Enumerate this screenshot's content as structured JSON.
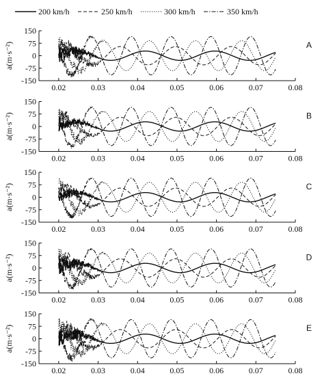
{
  "legend": [
    {
      "label": "200 km/h",
      "dash": "",
      "width": 1.4
    },
    {
      "label": "250 km/h",
      "dash": "5,3",
      "width": 1.0
    },
    {
      "label": "300 km/h",
      "dash": "1.2,2",
      "width": 1.0
    },
    {
      "label": "350 km/h",
      "dash": "6,2,1.5,2",
      "width": 1.0
    }
  ],
  "chart_data": [
    {
      "type": "line",
      "panel_label": "A",
      "ylabel": "a(m·s⁻²)",
      "xlim": [
        0.015,
        0.08
      ],
      "ylim": [
        -150,
        150
      ],
      "xticks": [
        "0.02",
        "0.03",
        "0.04",
        "0.05",
        "0.06",
        "0.07",
        "0.08"
      ],
      "yticks": [
        "150",
        "75",
        "0",
        "-75",
        "-150"
      ],
      "series": [
        {
          "name": "200 km/h",
          "x_range": [
            0.02,
            0.075
          ],
          "amplitude": 28,
          "period": 0.0176,
          "noise_until": 0.031,
          "noise_amplitude": 45
        },
        {
          "name": "250 km/h",
          "x_range": [
            0.02,
            0.075
          ],
          "amplitude": 55,
          "period": 0.0141,
          "noise_until": 0.032,
          "noise_amplitude": 60
        },
        {
          "name": "300 km/h",
          "x_range": [
            0.02,
            0.075
          ],
          "amplitude": 90,
          "period": 0.0117,
          "noise_until": 0.033,
          "noise_amplitude": 40
        },
        {
          "name": "350 km/h",
          "x_range": [
            0.02,
            0.075
          ],
          "amplitude": 115,
          "period": 0.0101,
          "noise_until": 0.03,
          "noise_amplitude": 30
        }
      ]
    },
    {
      "type": "line",
      "panel_label": "B",
      "ylabel": "a(m·s⁻²)",
      "xlim": [
        0.015,
        0.08
      ],
      "ylim": [
        -150,
        150
      ],
      "xticks": [
        "0.02",
        "0.03",
        "0.04",
        "0.05",
        "0.06",
        "0.07",
        "0.08"
      ],
      "yticks": [
        "150",
        "75",
        "0",
        "-75",
        "-150"
      ],
      "series": [
        {
          "name": "200 km/h",
          "x_range": [
            0.02,
            0.075
          ],
          "amplitude": 28,
          "period": 0.0176,
          "noise_until": 0.031,
          "noise_amplitude": 30
        },
        {
          "name": "250 km/h",
          "x_range": [
            0.02,
            0.075
          ],
          "amplitude": 55,
          "period": 0.0141,
          "noise_until": 0.032,
          "noise_amplitude": 45
        },
        {
          "name": "300 km/h",
          "x_range": [
            0.02,
            0.075
          ],
          "amplitude": 90,
          "period": 0.0117,
          "noise_until": 0.033,
          "noise_amplitude": 35
        },
        {
          "name": "350 km/h",
          "x_range": [
            0.02,
            0.075
          ],
          "amplitude": 115,
          "period": 0.0101,
          "noise_until": 0.03,
          "noise_amplitude": 25
        }
      ]
    },
    {
      "type": "line",
      "panel_label": "C",
      "ylabel": "a(m·s⁻²)",
      "xlim": [
        0.015,
        0.08
      ],
      "ylim": [
        -150,
        150
      ],
      "xticks": [
        "0.02",
        "0.03",
        "0.04",
        "0.05",
        "0.06",
        "0.07",
        "0.08"
      ],
      "yticks": [
        "150",
        "75",
        "0",
        "-75",
        "-150"
      ],
      "series": [
        {
          "name": "200 km/h",
          "x_range": [
            0.02,
            0.075
          ],
          "amplitude": 28,
          "period": 0.0176,
          "noise_until": 0.031,
          "noise_amplitude": 30
        },
        {
          "name": "250 km/h",
          "x_range": [
            0.02,
            0.075
          ],
          "amplitude": 55,
          "period": 0.0141,
          "noise_until": 0.032,
          "noise_amplitude": 40
        },
        {
          "name": "300 km/h",
          "x_range": [
            0.02,
            0.075
          ],
          "amplitude": 90,
          "period": 0.0117,
          "noise_until": 0.033,
          "noise_amplitude": 35
        },
        {
          "name": "350 km/h",
          "x_range": [
            0.02,
            0.075
          ],
          "amplitude": 115,
          "period": 0.0101,
          "noise_until": 0.03,
          "noise_amplitude": 25
        }
      ]
    },
    {
      "type": "line",
      "panel_label": "D",
      "ylabel": "a(m·s⁻²)",
      "xlim": [
        0.015,
        0.08
      ],
      "ylim": [
        -150,
        150
      ],
      "xticks": [
        "0.02",
        "0.03",
        "0.04",
        "0.05",
        "0.06",
        "0.07",
        "0.08"
      ],
      "yticks": [
        "150",
        "75",
        "0",
        "-75",
        "-150"
      ],
      "series": [
        {
          "name": "200 km/h",
          "x_range": [
            0.02,
            0.075
          ],
          "amplitude": 28,
          "period": 0.0176,
          "noise_until": 0.031,
          "noise_amplitude": 50
        },
        {
          "name": "250 km/h",
          "x_range": [
            0.02,
            0.075
          ],
          "amplitude": 55,
          "period": 0.0141,
          "noise_until": 0.032,
          "noise_amplitude": 55
        },
        {
          "name": "300 km/h",
          "x_range": [
            0.02,
            0.075
          ],
          "amplitude": 90,
          "period": 0.0117,
          "noise_until": 0.033,
          "noise_amplitude": 40
        },
        {
          "name": "350 km/h",
          "x_range": [
            0.02,
            0.075
          ],
          "amplitude": 115,
          "period": 0.0101,
          "noise_until": 0.03,
          "noise_amplitude": 30
        }
      ]
    },
    {
      "type": "line",
      "panel_label": "E",
      "ylabel": "a(m·s⁻²)",
      "xlim": [
        0.015,
        0.08
      ],
      "ylim": [
        -150,
        150
      ],
      "xticks": [
        "0.02",
        "0.03",
        "0.04",
        "0.05",
        "0.06",
        "0.07",
        "0.08"
      ],
      "yticks": [
        "150",
        "75",
        "0",
        "-75",
        "-150"
      ],
      "series": [
        {
          "name": "200 km/h",
          "x_range": [
            0.02,
            0.075
          ],
          "amplitude": 28,
          "period": 0.0176,
          "noise_until": 0.031,
          "noise_amplitude": 55
        },
        {
          "name": "250 km/h",
          "x_range": [
            0.02,
            0.075
          ],
          "amplitude": 55,
          "period": 0.0141,
          "noise_until": 0.032,
          "noise_amplitude": 70
        },
        {
          "name": "300 km/h",
          "x_range": [
            0.02,
            0.075
          ],
          "amplitude": 90,
          "period": 0.0117,
          "noise_until": 0.033,
          "noise_amplitude": 50
        },
        {
          "name": "350 km/h",
          "x_range": [
            0.02,
            0.075
          ],
          "amplitude": 115,
          "period": 0.0101,
          "noise_until": 0.03,
          "noise_amplitude": 35
        }
      ]
    }
  ]
}
